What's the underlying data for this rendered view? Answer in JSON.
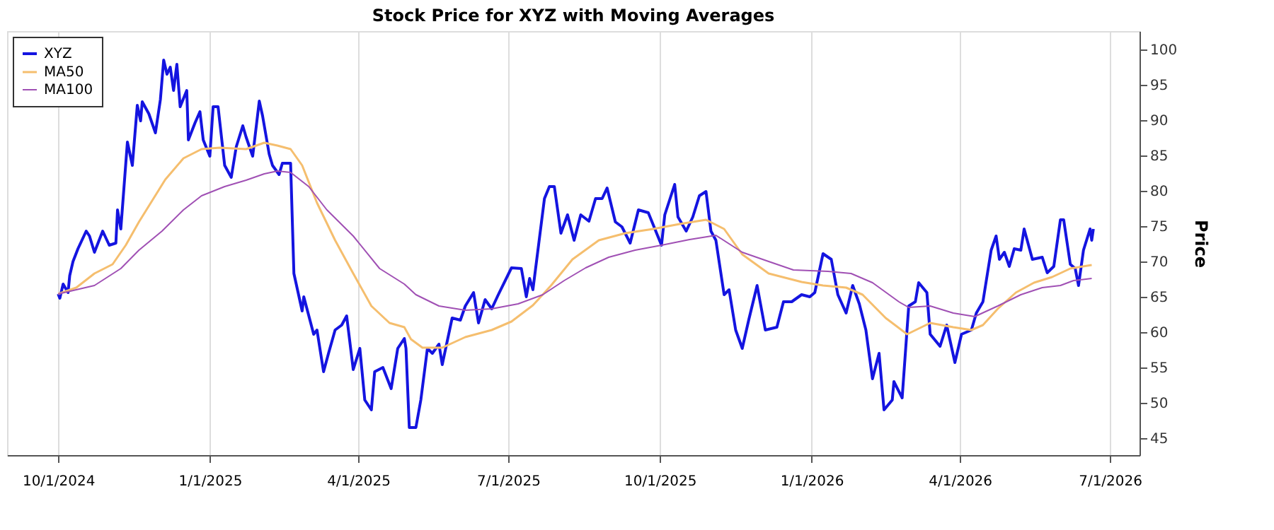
{
  "chart_data": {
    "type": "line",
    "title": "Stock Price for XYZ with Moving Averages",
    "ylabel": "Price",
    "xlim": [
      "2024-08-31",
      "2026-07-19"
    ],
    "xticks": [
      {
        "value": "2024-10-01",
        "label": "10/1/2024"
      },
      {
        "value": "2025-01-01",
        "label": "1/1/2025"
      },
      {
        "value": "2025-04-01",
        "label": "4/1/2025"
      },
      {
        "value": "2025-07-01",
        "label": "7/1/2025"
      },
      {
        "value": "2025-10-01",
        "label": "10/1/2025"
      },
      {
        "value": "2026-01-01",
        "label": "1/1/2026"
      },
      {
        "value": "2026-04-01",
        "label": "4/1/2026"
      },
      {
        "value": "2026-07-01",
        "label": "7/1/2026"
      }
    ],
    "ylim": [
      42.6,
      102.6
    ],
    "yticks": [
      45,
      50,
      55,
      60,
      65,
      70,
      75,
      80,
      85,
      90,
      95,
      100
    ],
    "grid": "x",
    "legend": "top left",
    "series": [
      {
        "name": "XYZ",
        "color": "#1414e0",
        "x": [
          "2024-10-01",
          "2024-10-02",
          "2024-10-04",
          "2024-10-07",
          "2024-10-08",
          "2024-10-10",
          "2024-10-13",
          "2024-10-18",
          "2024-10-20",
          "2024-10-23",
          "2024-10-28",
          "2024-11-01",
          "2024-11-05",
          "2024-11-06",
          "2024-11-08",
          "2024-11-12",
          "2024-11-15",
          "2024-11-18",
          "2024-11-20",
          "2024-11-21",
          "2024-11-25",
          "2024-11-29",
          "2024-12-02",
          "2024-12-04",
          "2024-12-06",
          "2024-12-08",
          "2024-12-10",
          "2024-12-12",
          "2024-12-14",
          "2024-12-18",
          "2024-12-19",
          "2024-12-23",
          "2024-12-26",
          "2024-12-28",
          "2025-01-01",
          "2025-01-03",
          "2025-01-06",
          "2025-01-10",
          "2025-01-14",
          "2025-01-17",
          "2025-01-21",
          "2025-01-23",
          "2025-01-27",
          "2025-01-31",
          "2025-02-02",
          "2025-02-06",
          "2025-02-08",
          "2025-02-12",
          "2025-02-14",
          "2025-02-19",
          "2025-02-21",
          "2025-02-26",
          "2025-02-27",
          "2025-03-05",
          "2025-03-07",
          "2025-03-11",
          "2025-03-14",
          "2025-03-18",
          "2025-03-22",
          "2025-03-25",
          "2025-03-29",
          "2025-04-02",
          "2025-04-05",
          "2025-04-09",
          "2025-04-11",
          "2025-04-16",
          "2025-04-21",
          "2025-04-25",
          "2025-04-29",
          "2025-04-30",
          "2025-05-02",
          "2025-05-06",
          "2025-05-09",
          "2025-05-13",
          "2025-05-16",
          "2025-05-20",
          "2025-05-22",
          "2025-05-28",
          "2025-06-02",
          "2025-06-05",
          "2025-06-10",
          "2025-06-13",
          "2025-06-17",
          "2025-06-21",
          "2025-06-25",
          "2025-07-03",
          "2025-07-09",
          "2025-07-12",
          "2025-07-14",
          "2025-07-16",
          "2025-07-23",
          "2025-07-26",
          "2025-07-29",
          "2025-08-02",
          "2025-08-06",
          "2025-08-10",
          "2025-08-14",
          "2025-08-19",
          "2025-08-23",
          "2025-08-27",
          "2025-08-30",
          "2025-09-04",
          "2025-09-08",
          "2025-09-13",
          "2025-09-18",
          "2025-09-24",
          "2025-09-28",
          "2025-10-02",
          "2025-10-04",
          "2025-10-10",
          "2025-10-12",
          "2025-10-17",
          "2025-10-21",
          "2025-10-25",
          "2025-10-29",
          "2025-11-01",
          "2025-11-04",
          "2025-11-09",
          "2025-11-12",
          "2025-11-16",
          "2025-11-20",
          "2025-11-24",
          "2025-11-29",
          "2025-12-04",
          "2025-12-11",
          "2025-12-15",
          "2025-12-20",
          "2025-12-26",
          "2025-12-31",
          "2026-01-03",
          "2026-01-08",
          "2026-01-13",
          "2026-01-17",
          "2026-01-22",
          "2026-01-26",
          "2026-01-30",
          "2026-02-03",
          "2026-02-07",
          "2026-02-11",
          "2026-02-14",
          "2026-02-19",
          "2026-02-20",
          "2026-02-25",
          "2026-03-01",
          "2026-03-05",
          "2026-03-07",
          "2026-03-12",
          "2026-03-14",
          "2026-03-20",
          "2026-03-24",
          "2026-03-29",
          "2026-04-02",
          "2026-04-08",
          "2026-04-11",
          "2026-04-15",
          "2026-04-20",
          "2026-04-23",
          "2026-04-25",
          "2026-04-28",
          "2026-05-01",
          "2026-05-04",
          "2026-05-08",
          "2026-05-10",
          "2026-05-15",
          "2026-05-21",
          "2026-05-24",
          "2026-05-28",
          "2026-06-01",
          "2026-06-03",
          "2026-06-07",
          "2026-06-10",
          "2026-06-12",
          "2026-06-15",
          "2026-06-19",
          "2026-06-20",
          "2026-06-21"
        ],
        "values": [
          65.4,
          64.8,
          66.8,
          65.6,
          68.0,
          70.0,
          71.8,
          74.3,
          73.6,
          71.3,
          74.3,
          72.3,
          72.6,
          77.3,
          74.6,
          86.9,
          83.6,
          92.1,
          89.9,
          92.6,
          90.9,
          88.2,
          92.9,
          98.5,
          96.5,
          97.5,
          94.2,
          97.9,
          91.9,
          94.2,
          87.2,
          89.6,
          91.2,
          87.2,
          84.9,
          91.9,
          91.9,
          83.6,
          81.9,
          86.2,
          89.2,
          87.6,
          84.9,
          92.7,
          90.6,
          85.2,
          83.6,
          82.3,
          83.9,
          83.9,
          68.3,
          63.0,
          65.0,
          59.7,
          60.3,
          54.4,
          57.0,
          60.3,
          61.0,
          62.3,
          54.7,
          57.7,
          50.4,
          49.0,
          54.4,
          55.0,
          52.0,
          57.7,
          59.1,
          57.7,
          46.5,
          46.5,
          50.4,
          57.7,
          57.0,
          58.3,
          55.4,
          62.0,
          61.7,
          63.7,
          65.6,
          61.3,
          64.6,
          63.3,
          65.3,
          69.1,
          69.0,
          65.0,
          67.6,
          66.0,
          78.9,
          80.6,
          80.6,
          74.0,
          76.6,
          73.0,
          76.6,
          75.7,
          78.9,
          78.9,
          80.4,
          75.6,
          74.9,
          72.6,
          77.3,
          76.9,
          74.6,
          72.3,
          76.6,
          80.9,
          76.3,
          74.3,
          76.3,
          79.3,
          79.9,
          74.3,
          73.0,
          65.3,
          66.0,
          60.3,
          57.7,
          61.8,
          66.6,
          60.3,
          60.7,
          64.3,
          64.3,
          65.3,
          65.0,
          65.6,
          71.1,
          70.3,
          65.3,
          62.7,
          66.6,
          64.0,
          60.3,
          53.4,
          57.0,
          49.0,
          50.4,
          53.0,
          50.7,
          63.7,
          64.3,
          67.0,
          65.6,
          59.7,
          58.0,
          61.0,
          55.7,
          59.7,
          60.3,
          62.7,
          64.3,
          71.6,
          73.6,
          70.3,
          71.3,
          69.3,
          71.8,
          71.6,
          74.6,
          70.3,
          70.6,
          68.4,
          69.3,
          75.9,
          75.9,
          69.6,
          69.0,
          66.6,
          71.6,
          74.6,
          73.0,
          74.6
        ]
      },
      {
        "name": "MA50",
        "color": "#f5be6e",
        "x": [
          "2024-10-01",
          "2024-10-12",
          "2024-10-23",
          "2024-11-03",
          "2024-11-11",
          "2024-11-19",
          "2024-11-27",
          "2024-12-05",
          "2024-12-16",
          "2024-12-27",
          "2025-01-07",
          "2025-01-23",
          "2025-02-03",
          "2025-02-11",
          "2025-02-19",
          "2025-02-26",
          "2025-03-07",
          "2025-03-18",
          "2025-03-29",
          "2025-04-09",
          "2025-04-20",
          "2025-04-29",
          "2025-05-03",
          "2025-05-10",
          "2025-05-22",
          "2025-06-05",
          "2025-06-21",
          "2025-07-03",
          "2025-07-16",
          "2025-07-27",
          "2025-08-09",
          "2025-08-25",
          "2025-09-10",
          "2025-09-27",
          "2025-10-13",
          "2025-10-29",
          "2025-11-09",
          "2025-11-20",
          "2025-12-06",
          "2025-12-26",
          "2026-01-08",
          "2026-01-22",
          "2026-02-01",
          "2026-02-15",
          "2026-02-28",
          "2026-03-14",
          "2026-03-28",
          "2026-04-08",
          "2026-04-15",
          "2026-04-24",
          "2026-05-05",
          "2026-05-16",
          "2026-05-27",
          "2026-06-07",
          "2026-06-20"
        ],
        "values": [
          65.4,
          66.3,
          68.3,
          69.6,
          72.3,
          75.6,
          78.6,
          81.6,
          84.6,
          85.9,
          86.1,
          85.9,
          86.8,
          86.4,
          85.9,
          83.6,
          78.3,
          73.0,
          68.3,
          63.7,
          61.3,
          60.7,
          59.0,
          57.8,
          57.8,
          59.3,
          60.3,
          61.5,
          63.8,
          66.6,
          70.3,
          73.0,
          74.0,
          74.6,
          75.3,
          75.9,
          74.6,
          71.0,
          68.3,
          67.1,
          66.6,
          66.3,
          65.3,
          62.0,
          59.7,
          61.3,
          60.7,
          60.3,
          61.0,
          63.3,
          65.6,
          67.0,
          67.8,
          69.0,
          69.5
        ]
      },
      {
        "name": "MA100",
        "color": "#a050b4",
        "x": [
          "2024-10-01",
          "2024-10-23",
          "2024-11-08",
          "2024-11-19",
          "2024-12-03",
          "2024-12-16",
          "2024-12-27",
          "2025-01-10",
          "2025-01-23",
          "2025-02-03",
          "2025-02-11",
          "2025-02-19",
          "2025-03-02",
          "2025-03-13",
          "2025-03-29",
          "2025-04-14",
          "2025-04-29",
          "2025-05-06",
          "2025-05-20",
          "2025-06-05",
          "2025-06-21",
          "2025-07-07",
          "2025-07-22",
          "2025-08-04",
          "2025-08-17",
          "2025-08-31",
          "2025-09-16",
          "2025-10-02",
          "2025-10-19",
          "2025-11-04",
          "2025-11-20",
          "2025-12-06",
          "2025-12-21",
          "2026-01-11",
          "2026-01-25",
          "2026-02-07",
          "2026-02-23",
          "2026-03-01",
          "2026-03-14",
          "2026-03-28",
          "2026-04-10",
          "2026-04-24",
          "2026-05-08",
          "2026-05-21",
          "2026-06-01",
          "2026-06-09",
          "2026-06-20"
        ],
        "values": [
          65.4,
          66.6,
          69.0,
          71.6,
          74.3,
          77.3,
          79.3,
          80.6,
          81.5,
          82.4,
          82.8,
          82.6,
          80.6,
          77.3,
          73.6,
          69.0,
          66.8,
          65.3,
          63.7,
          63.1,
          63.3,
          64.0,
          65.3,
          67.3,
          69.1,
          70.6,
          71.6,
          72.3,
          73.1,
          73.7,
          71.3,
          70.0,
          68.8,
          68.6,
          68.3,
          67.0,
          64.3,
          63.5,
          63.7,
          62.7,
          62.2,
          63.7,
          65.3,
          66.3,
          66.6,
          67.3,
          67.6
        ]
      }
    ]
  }
}
